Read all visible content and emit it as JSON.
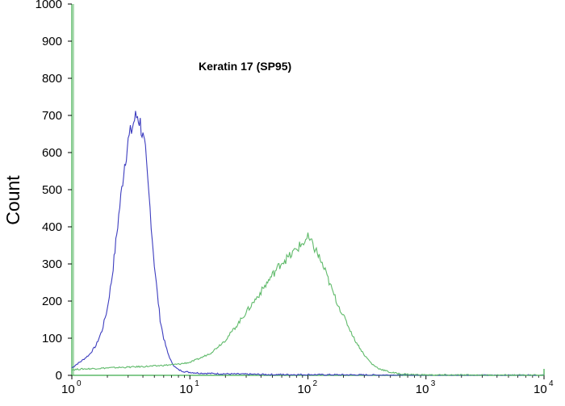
{
  "chart_data": {
    "type": "line",
    "title": "Keratin 17 (SP95)",
    "xlabel": "",
    "ylabel": "Count",
    "x_scale": "log",
    "xlim": [
      1,
      10000
    ],
    "ylim": [
      0,
      1000
    ],
    "grid": false,
    "x_ticks": [
      {
        "value": 1,
        "base": "10",
        "exp": "0"
      },
      {
        "value": 10,
        "base": "10",
        "exp": "1"
      },
      {
        "value": 100,
        "base": "10",
        "exp": "2"
      },
      {
        "value": 1000,
        "base": "10",
        "exp": "3"
      },
      {
        "value": 10000,
        "base": "10",
        "exp": "4"
      }
    ],
    "y_ticks": [
      "0",
      "100",
      "200",
      "300",
      "400",
      "500",
      "600",
      "700",
      "800",
      "900",
      "1000"
    ],
    "series": [
      {
        "color": "#3d3dbf",
        "x": [
          1.0,
          1.1,
          1.2,
          1.4,
          1.6,
          1.8,
          2.0,
          2.2,
          2.4,
          2.6,
          2.8,
          3.0,
          3.2,
          3.4,
          3.6,
          3.8,
          4.0,
          4.2,
          4.4,
          4.6,
          4.8,
          5.0,
          5.3,
          5.6,
          6.0,
          6.5,
          7.0,
          7.5,
          8.0,
          9.0,
          10.0,
          12.0,
          15.0,
          20.0,
          30.0,
          50.0,
          100,
          300,
          1000,
          10000
        ],
        "y": [
          20,
          30,
          38,
          55,
          80,
          120,
          180,
          270,
          380,
          480,
          570,
          630,
          660,
          690,
          700,
          680,
          640,
          600,
          520,
          450,
          370,
          300,
          220,
          150,
          100,
          60,
          35,
          22,
          15,
          10,
          8,
          6,
          5,
          4,
          3,
          2,
          2,
          1,
          0,
          0
        ]
      },
      {
        "color": "#5fba6a",
        "x": [
          1.0,
          1.2,
          1.5,
          2.0,
          3.0,
          5.0,
          8.0,
          10.0,
          12.0,
          15.0,
          20.0,
          25.0,
          30.0,
          40.0,
          50.0,
          60.0,
          70.0,
          80.0,
          90.0,
          100,
          110,
          120,
          140,
          160,
          180,
          200,
          250,
          300,
          350,
          400,
          500,
          600,
          800,
          1000,
          10000
        ],
        "y": [
          15,
          17,
          18,
          20,
          22,
          25,
          30,
          35,
          45,
          60,
          95,
          135,
          170,
          225,
          270,
          305,
          320,
          340,
          355,
          370,
          350,
          330,
          280,
          230,
          190,
          160,
          95,
          55,
          30,
          18,
          8,
          4,
          2,
          1,
          0
        ]
      }
    ]
  }
}
